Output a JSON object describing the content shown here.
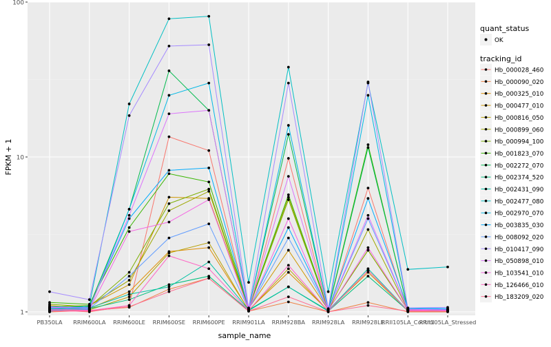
{
  "chart_data": {
    "type": "line",
    "xlabel": "sample_name",
    "ylabel": "FPKM + 1",
    "y_scale": "log10",
    "ylim": [
      0.95,
      100
    ],
    "y_ticks": [
      1,
      10,
      100
    ],
    "y_tick_labels": [
      "1",
      "10",
      "100"
    ],
    "grid": true,
    "legend_position": "right",
    "background": "#EBEBEB",
    "categories": [
      "PB350LA",
      "RRIM600LA",
      "RRIM600LE",
      "RRIM600SE",
      "RRIM600PE",
      "RRIM901LA",
      "RRIM928BA",
      "RRIM928LA",
      "RRIM928LE",
      "RRII105LA_Control",
      "RRII105LA_Stressed"
    ],
    "shape_legend": {
      "title": "quant_status",
      "entries": [
        "OK"
      ]
    },
    "color_legend_title": "tracking_id",
    "series": [
      {
        "name": "Hb_000028_460",
        "color": "#F8766D",
        "values": [
          1.03,
          1.0,
          1.1,
          13.5,
          11.0,
          1.02,
          9.8,
          1.01,
          6.3,
          1.02,
          1.01
        ]
      },
      {
        "name": "Hb_000090_020",
        "color": "#EE8043",
        "values": [
          1.0,
          1.02,
          1.07,
          1.4,
          1.65,
          1.01,
          1.16,
          1.0,
          1.15,
          1.0,
          1.0
        ]
      },
      {
        "name": "Hb_000325_010",
        "color": "#DE8C00",
        "values": [
          1.1,
          1.05,
          1.35,
          2.45,
          2.6,
          1.03,
          1.8,
          1.02,
          1.8,
          1.02,
          1.02
        ]
      },
      {
        "name": "Hb_000477_010",
        "color": "#CD9600",
        "values": [
          1.05,
          1.1,
          1.5,
          5.5,
          5.4,
          1.05,
          2.5,
          1.03,
          2.5,
          1.03,
          1.03
        ]
      },
      {
        "name": "Hb_000816_050",
        "color": "#B79F00",
        "values": [
          1.02,
          1.03,
          1.25,
          2.4,
          2.8,
          1.02,
          1.9,
          1.01,
          1.85,
          1.01,
          1.01
        ]
      },
      {
        "name": "Hb_000899_060",
        "color": "#9EA700",
        "values": [
          1.08,
          1.1,
          1.6,
          4.5,
          6.0,
          1.04,
          5.5,
          1.02,
          3.4,
          1.03,
          1.02
        ]
      },
      {
        "name": "Hb_000994_100",
        "color": "#7CAE00",
        "values": [
          1.12,
          1.08,
          1.8,
          5.0,
          6.2,
          1.05,
          5.3,
          1.03,
          2.5,
          1.03,
          1.03
        ]
      },
      {
        "name": "Hb_001823_070",
        "color": "#39B600",
        "values": [
          1.15,
          1.12,
          3.5,
          7.8,
          6.9,
          1.06,
          5.7,
          1.04,
          12.0,
          1.04,
          1.03
        ]
      },
      {
        "name": "Hb_002272_070",
        "color": "#00BB4E",
        "values": [
          1.06,
          1.09,
          4.6,
          36.0,
          20.0,
          1.05,
          14.0,
          1.03,
          11.5,
          1.05,
          1.03
        ]
      },
      {
        "name": "Hb_002374_520",
        "color": "#00BF7D",
        "values": [
          1.04,
          1.05,
          1.2,
          1.5,
          1.7,
          1.02,
          1.45,
          1.01,
          1.7,
          1.02,
          1.02
        ]
      },
      {
        "name": "Hb_002431_090",
        "color": "#00C1A3",
        "values": [
          1.05,
          1.06,
          1.3,
          1.45,
          2.1,
          1.03,
          1.45,
          1.02,
          1.9,
          1.02,
          1.02
        ]
      },
      {
        "name": "Hb_002477_080",
        "color": "#00BFC4",
        "values": [
          1.0,
          1.1,
          22.0,
          78.0,
          81.0,
          1.55,
          38.0,
          1.35,
          30.0,
          1.88,
          1.95
        ]
      },
      {
        "name": "Hb_002970_070",
        "color": "#00B8E5",
        "values": [
          1.03,
          1.04,
          4.6,
          25.0,
          30.0,
          1.04,
          16.0,
          1.03,
          25.0,
          1.05,
          1.04
        ]
      },
      {
        "name": "Hb_003835_030",
        "color": "#00ABFD",
        "values": [
          1.08,
          1.07,
          4.0,
          8.2,
          8.5,
          1.05,
          3.5,
          1.03,
          5.4,
          1.06,
          1.05
        ]
      },
      {
        "name": "Hb_008092_020",
        "color": "#619CFF",
        "values": [
          1.06,
          1.05,
          1.7,
          3.0,
          3.7,
          1.04,
          3.0,
          1.03,
          4.0,
          1.04,
          1.04
        ]
      },
      {
        "name": "Hb_010417_090",
        "color": "#A58AFF",
        "values": [
          1.35,
          1.2,
          18.5,
          52.0,
          53.0,
          1.06,
          30.0,
          1.05,
          30.5,
          1.06,
          1.07
        ]
      },
      {
        "name": "Hb_050898_010",
        "color": "#DB72FB",
        "values": [
          1.07,
          1.06,
          4.2,
          19.0,
          20.0,
          1.04,
          7.5,
          1.03,
          4.2,
          1.04,
          1.03
        ]
      },
      {
        "name": "Hb_103541_010",
        "color": "#F564E3",
        "values": [
          1.04,
          1.03,
          3.3,
          3.8,
          5.3,
          1.03,
          4.0,
          1.02,
          2.6,
          1.03,
          1.02
        ]
      },
      {
        "name": "Hb_126466_010",
        "color": "#FF61C3",
        "values": [
          1.02,
          1.02,
          1.1,
          2.3,
          1.9,
          1.02,
          2.0,
          1.01,
          1.85,
          1.02,
          1.01
        ]
      },
      {
        "name": "Hb_183209_020",
        "color": "#FF6C91",
        "values": [
          1.01,
          1.01,
          1.08,
          1.35,
          1.65,
          1.01,
          1.25,
          1.0,
          1.1,
          1.01,
          1.01
        ]
      }
    ]
  }
}
